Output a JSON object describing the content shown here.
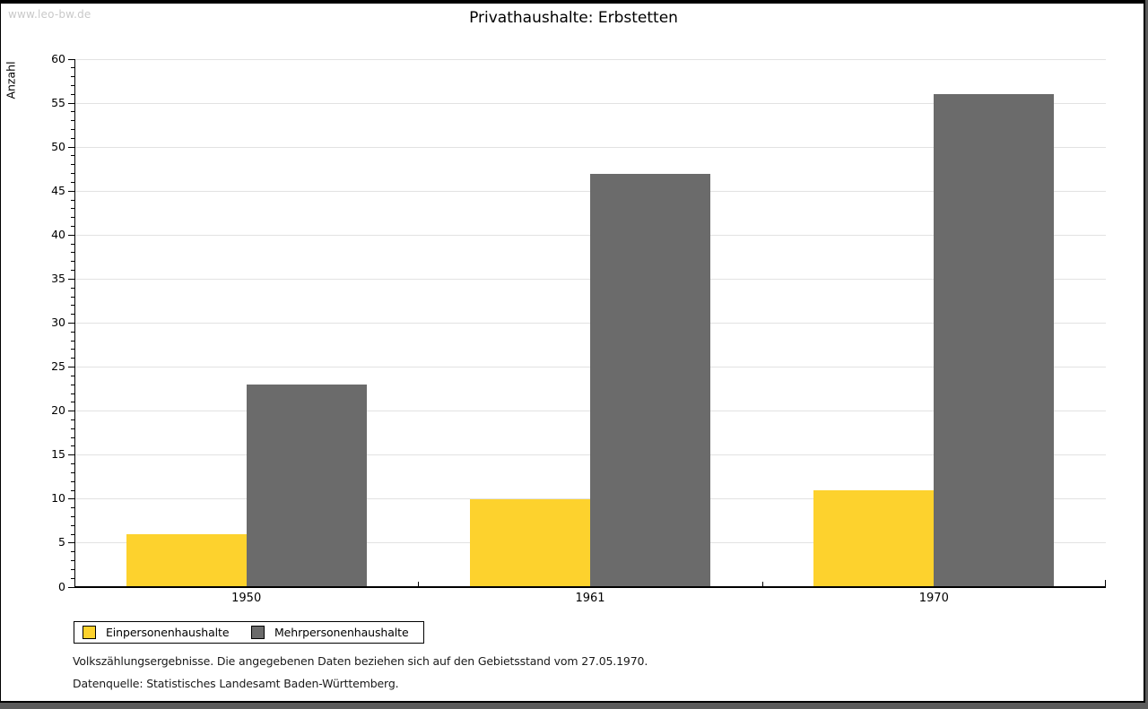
{
  "watermark": "www.leo-bw.de",
  "chart_data": {
    "type": "bar",
    "title": "Privathaushalte: Erbstetten",
    "categories": [
      "1950",
      "1961",
      "1970"
    ],
    "series": [
      {
        "name": "Einpersonenhaushalte",
        "color": "#FDD22D",
        "values": [
          6,
          10,
          11
        ]
      },
      {
        "name": "Mehrpersonenhaushalte",
        "color": "#6B6B6B",
        "values": [
          23,
          47,
          56
        ]
      }
    ],
    "xlabel": "",
    "ylabel": "Anzahl",
    "ylim": [
      0,
      60
    ],
    "ytick_step": 5,
    "yminor_step": 1,
    "grid": true,
    "legend_position": "bottom-left",
    "bar_layout": "grouped"
  },
  "footer": {
    "note": "Volkszählungsergebnisse. Die angegebenen Daten beziehen sich auf den Gebietsstand vom 27.05.1970.",
    "source": "Datenquelle: Statistisches Landesamt Baden-Württemberg."
  },
  "colors": {
    "grid": "#e2e2e2",
    "axis": "#000000",
    "background": "#ffffff",
    "frame": "#000000",
    "shadow": "#5b5b5b",
    "watermark": "#c9c9c9"
  }
}
